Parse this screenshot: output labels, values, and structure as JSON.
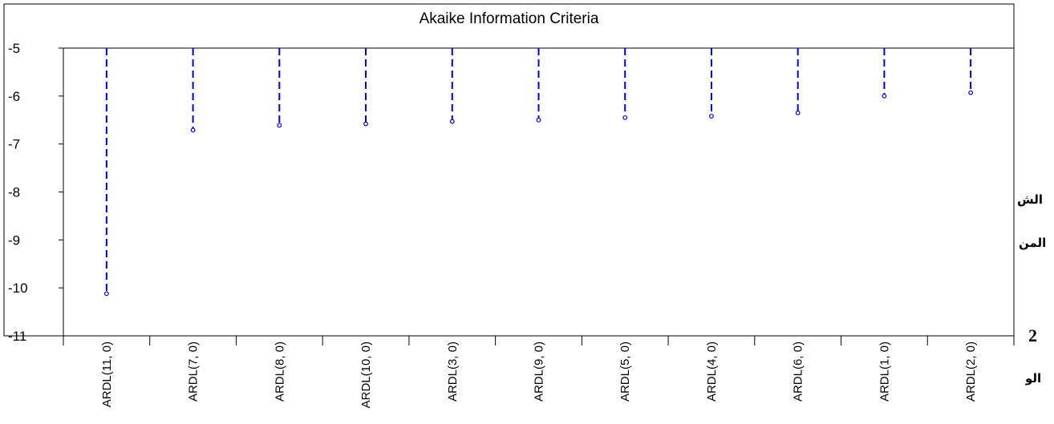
{
  "chart_data": {
    "type": "line",
    "title": "Akaike Information Criteria",
    "categories": [
      "ARDL(11, 0)",
      "ARDL(7, 0)",
      "ARDL(8, 0)",
      "ARDL(10, 0)",
      "ARDL(3, 0)",
      "ARDL(9, 0)",
      "ARDL(5, 0)",
      "ARDL(4, 0)",
      "ARDL(6, 0)",
      "ARDL(1, 0)",
      "ARDL(2, 0)"
    ],
    "values": [
      -10.12,
      -6.71,
      -6.61,
      -6.58,
      -6.53,
      -6.5,
      -6.45,
      -6.42,
      -6.35,
      -6.0,
      -5.93
    ],
    "yticks": [
      -5,
      -6,
      -7,
      -8,
      -9,
      -10,
      -11
    ],
    "ylim": [
      -11,
      -5
    ],
    "series_color": "#0000cc",
    "line_style": "dashed-drop-lines-from-top",
    "grid": false,
    "xlabel": "",
    "ylabel": ""
  },
  "side_text": {
    "line1": "الش",
    "line2": "المن",
    "num": "2",
    "line3": "الو"
  }
}
